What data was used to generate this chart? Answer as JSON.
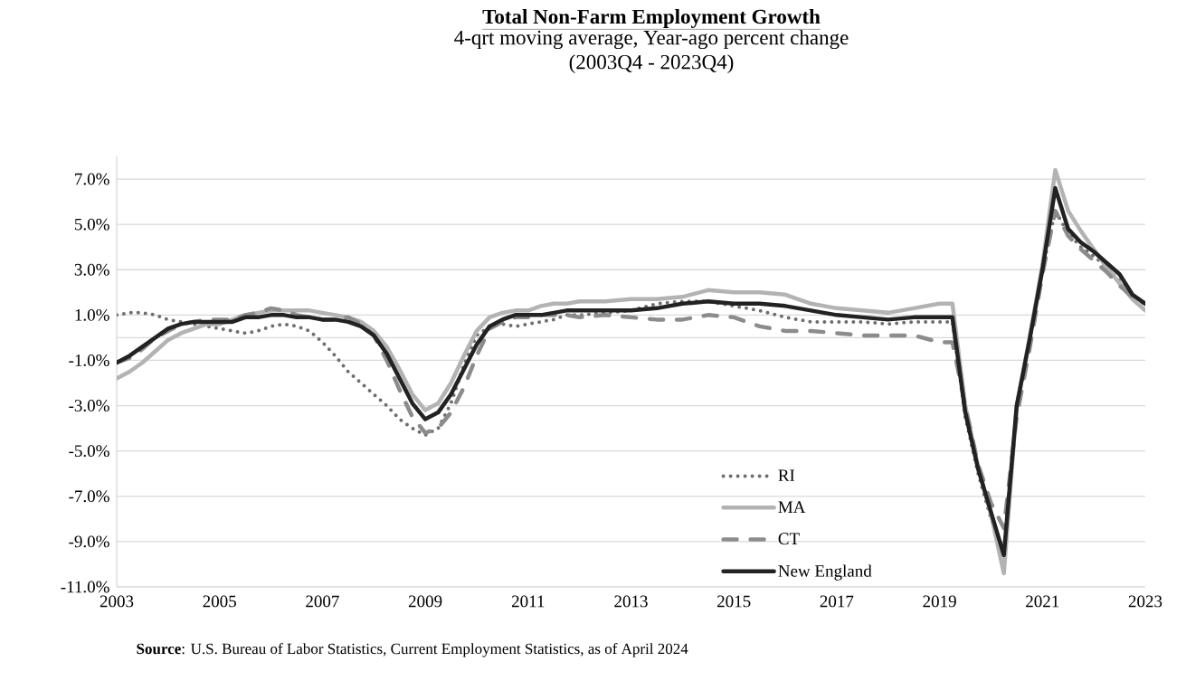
{
  "chart_data": {
    "type": "line",
    "title": "Total Non-Farm Employment Growth",
    "subtitle": "4-qrt moving average, Year-ago percent change\n(2003Q4 - 2023Q4)",
    "annotations": [
      "**Source**: U.S. Bureau of Labor Statistics, Current Employment Statistics, as of April 2024"
    ],
    "x": [
      2003,
      2003.25,
      2003.5,
      2003.75,
      2004,
      2004.25,
      2004.5,
      2004.75,
      2005,
      2005.25,
      2005.5,
      2005.75,
      2006,
      2006.25,
      2006.5,
      2006.75,
      2007,
      2007.25,
      2007.5,
      2007.75,
      2008,
      2008.25,
      2008.5,
      2008.75,
      2009,
      2009.25,
      2009.5,
      2009.75,
      2010,
      2010.25,
      2010.5,
      2010.75,
      2011,
      2011.25,
      2011.5,
      2011.75,
      2012,
      2012.5,
      2013,
      2013.5,
      2014,
      2014.5,
      2015,
      2015.5,
      2016,
      2016.5,
      2017,
      2017.5,
      2018,
      2018.5,
      2019,
      2019.25,
      2019.5,
      2019.75,
      2020,
      2020.25,
      2020.5,
      2020.75,
      2021,
      2021.25,
      2021.5,
      2021.75,
      2022,
      2022.25,
      2022.5,
      2022.75,
      2023
    ],
    "series": [
      {
        "name": "RI",
        "color": "#6e6e6e",
        "line_style": "dotted",
        "values": [
          1.0,
          1.1,
          1.1,
          1.0,
          0.8,
          0.7,
          0.6,
          0.5,
          0.4,
          0.3,
          0.2,
          0.3,
          0.5,
          0.6,
          0.5,
          0.3,
          -0.2,
          -0.8,
          -1.5,
          -2.0,
          -2.5,
          -3.0,
          -3.6,
          -4.0,
          -4.3,
          -4.0,
          -2.9,
          -1.2,
          0.1,
          0.5,
          0.6,
          0.5,
          0.6,
          0.7,
          0.8,
          1.0,
          1.0,
          1.1,
          1.2,
          1.5,
          1.6,
          1.6,
          1.4,
          1.2,
          0.9,
          0.7,
          0.7,
          0.7,
          0.6,
          0.7,
          0.7,
          0.7,
          -3.5,
          -6.0,
          -8.0,
          -9.4,
          -3.2,
          0.0,
          3.0,
          5.6,
          4.6,
          4.0,
          3.6,
          3.1,
          2.5,
          1.9,
          1.5
        ]
      },
      {
        "name": "MA",
        "color": "#b3b3b3",
        "line_style": "solid",
        "values": [
          -1.8,
          -1.5,
          -1.1,
          -0.6,
          -0.1,
          0.2,
          0.4,
          0.6,
          0.6,
          0.8,
          1.0,
          1.1,
          1.2,
          1.2,
          1.2,
          1.2,
          1.1,
          1.0,
          0.9,
          0.7,
          0.3,
          -0.4,
          -1.4,
          -2.5,
          -3.2,
          -2.9,
          -2.0,
          -0.8,
          0.3,
          0.9,
          1.1,
          1.2,
          1.2,
          1.4,
          1.5,
          1.5,
          1.6,
          1.6,
          1.7,
          1.7,
          1.8,
          2.1,
          2.0,
          2.0,
          1.9,
          1.5,
          1.3,
          1.2,
          1.1,
          1.3,
          1.5,
          1.5,
          -3.0,
          -5.7,
          -7.8,
          -10.4,
          -3.0,
          0.0,
          3.2,
          7.4,
          5.6,
          4.7,
          3.9,
          3.1,
          2.4,
          1.7,
          1.2
        ]
      },
      {
        "name": "CT",
        "color": "#8c8c8c",
        "line_style": "dashed",
        "values": [
          -1.1,
          -0.9,
          -0.5,
          0.0,
          0.3,
          0.6,
          0.7,
          0.8,
          0.8,
          0.8,
          1.0,
          1.1,
          1.3,
          1.2,
          1.0,
          0.9,
          0.8,
          0.8,
          0.9,
          0.6,
          0.1,
          -1.0,
          -2.3,
          -3.5,
          -4.2,
          -4.0,
          -3.3,
          -2.2,
          -0.8,
          0.4,
          0.7,
          0.9,
          0.9,
          1.0,
          1.0,
          1.0,
          0.9,
          1.0,
          0.9,
          0.8,
          0.8,
          1.0,
          0.9,
          0.5,
          0.3,
          0.3,
          0.2,
          0.1,
          0.1,
          0.1,
          -0.2,
          -0.2,
          -3.0,
          -5.6,
          -7.3,
          -8.4,
          -3.5,
          -0.5,
          2.8,
          5.6,
          4.5,
          3.9,
          3.4,
          2.9,
          2.3,
          1.8,
          1.5
        ]
      },
      {
        "name": "New England",
        "color": "#222222",
        "line_style": "solid",
        "values": [
          -1.1,
          -0.8,
          -0.4,
          0.0,
          0.4,
          0.6,
          0.7,
          0.7,
          0.7,
          0.7,
          0.9,
          0.9,
          1.0,
          1.0,
          0.9,
          0.9,
          0.8,
          0.8,
          0.7,
          0.5,
          0.1,
          -0.7,
          -1.8,
          -2.9,
          -3.6,
          -3.3,
          -2.5,
          -1.4,
          -0.3,
          0.5,
          0.8,
          1.0,
          1.0,
          1.0,
          1.1,
          1.2,
          1.2,
          1.2,
          1.2,
          1.3,
          1.5,
          1.6,
          1.5,
          1.5,
          1.4,
          1.2,
          1.0,
          0.9,
          0.8,
          0.9,
          0.9,
          0.9,
          -3.3,
          -5.8,
          -7.7,
          -9.6,
          -3.0,
          -0.1,
          3.0,
          6.6,
          4.8,
          4.2,
          3.8,
          3.3,
          2.8,
          1.9,
          1.5
        ]
      }
    ],
    "xlim": [
      2003,
      2023
    ],
    "xticks": [
      2003,
      2005,
      2007,
      2009,
      2011,
      2013,
      2015,
      2017,
      2019,
      2021,
      2023
    ],
    "ylim": [
      -11,
      8
    ],
    "yticks": [
      {
        "value": -11,
        "label": "-11.0%"
      },
      {
        "value": -9,
        "label": "-9.0%"
      },
      {
        "value": -7,
        "label": "-7.0%"
      },
      {
        "value": -5,
        "label": "-5.0%"
      },
      {
        "value": -3,
        "label": "-3.0%"
      },
      {
        "value": -1,
        "label": "-1.0%"
      },
      {
        "value": 1,
        "label": "1.0%"
      },
      {
        "value": 3,
        "label": "3.0%"
      },
      {
        "value": 5,
        "label": "5.0%"
      },
      {
        "value": 7,
        "label": "7.0%"
      }
    ],
    "ref_lines": [
      {
        "axis": "y",
        "value": 0,
        "color": "#d9d9d9"
      }
    ],
    "grid": "y",
    "legend": "bottom right"
  }
}
